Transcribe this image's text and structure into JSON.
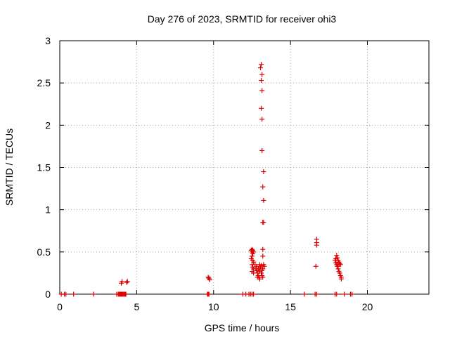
{
  "chart_data": {
    "type": "scatter",
    "title": "Day 276 of 2023, SRMTID for receiver ohi3",
    "xlabel": "GPS time / hours",
    "ylabel": "SRMTID / TECUs",
    "xlim": [
      0,
      24
    ],
    "ylim": [
      0,
      3
    ],
    "xticks": [
      0,
      5,
      10,
      15,
      20
    ],
    "yticks": [
      0,
      0.5,
      1,
      1.5,
      2,
      2.5,
      3
    ],
    "ytick_labels": [
      "0",
      "0.5",
      "1",
      "1.5",
      "2",
      "2.5",
      "3"
    ],
    "grid": true,
    "marker": "+",
    "marker_color": "#dd0000",
    "series": [
      {
        "name": "SRMTID",
        "points": [
          [
            0.1,
            0
          ],
          [
            0.3,
            0
          ],
          [
            0.4,
            0
          ],
          [
            0.9,
            0
          ],
          [
            2.2,
            0
          ],
          [
            3.7,
            0
          ],
          [
            3.8,
            0
          ],
          [
            3.85,
            0
          ],
          [
            3.9,
            0
          ],
          [
            3.95,
            0
          ],
          [
            4.0,
            0
          ],
          [
            4.05,
            0
          ],
          [
            4.1,
            0
          ],
          [
            4.15,
            0
          ],
          [
            4.2,
            0
          ],
          [
            4.25,
            0
          ],
          [
            4.3,
            0
          ],
          [
            4.0,
            0.13
          ],
          [
            4.05,
            0.15
          ],
          [
            4.35,
            0.14
          ],
          [
            4.4,
            0.15
          ],
          [
            9.6,
            0
          ],
          [
            9.65,
            0
          ],
          [
            9.7,
            0
          ],
          [
            9.65,
            0.2
          ],
          [
            9.7,
            0.19
          ],
          [
            9.75,
            0.17
          ],
          [
            11.9,
            0
          ],
          [
            12.1,
            0
          ],
          [
            12.3,
            0
          ],
          [
            12.4,
            0
          ],
          [
            12.5,
            0
          ],
          [
            12.6,
            0
          ],
          [
            12.45,
            0.52
          ],
          [
            12.5,
            0.5
          ],
          [
            12.55,
            0.48
          ],
          [
            12.5,
            0.45
          ],
          [
            12.45,
            0.42
          ],
          [
            12.55,
            0.4
          ],
          [
            12.6,
            0.38
          ],
          [
            12.5,
            0.35
          ],
          [
            12.55,
            0.32
          ],
          [
            12.6,
            0.3
          ],
          [
            12.5,
            0.27
          ],
          [
            12.6,
            0.25
          ],
          [
            12.55,
            0.52
          ],
          [
            12.6,
            0.5
          ],
          [
            12.5,
            0.53
          ],
          [
            12.7,
            0.35
          ],
          [
            12.75,
            0.3
          ],
          [
            12.8,
            0.28
          ],
          [
            12.85,
            0.25
          ],
          [
            12.9,
            0.22
          ],
          [
            12.95,
            0.2
          ],
          [
            13.0,
            0.18
          ],
          [
            12.8,
            0.33
          ],
          [
            12.9,
            0.3
          ],
          [
            13.0,
            0.27
          ],
          [
            13.1,
            0.25
          ],
          [
            13.15,
            0.22
          ],
          [
            13.2,
            0.2
          ],
          [
            12.85,
            0.2
          ],
          [
            13.05,
            0.32
          ],
          [
            13.1,
            0.34
          ],
          [
            13.2,
            0.3
          ],
          [
            13.25,
            0.35
          ],
          [
            13.3,
            0.33
          ],
          [
            13.0,
            0.35
          ],
          [
            12.95,
            0.3
          ],
          [
            13.15,
            0.28
          ],
          [
            13.1,
            2.72
          ],
          [
            13.05,
            2.68
          ],
          [
            13.15,
            2.6
          ],
          [
            13.1,
            2.53
          ],
          [
            13.15,
            2.41
          ],
          [
            13.1,
            2.2
          ],
          [
            13.15,
            2.07
          ],
          [
            13.15,
            1.7
          ],
          [
            13.25,
            1.45
          ],
          [
            13.2,
            1.27
          ],
          [
            13.25,
            1.11
          ],
          [
            13.2,
            0.85
          ],
          [
            13.25,
            0.85
          ],
          [
            13.2,
            0.53
          ],
          [
            13.2,
            0.45
          ],
          [
            15.9,
            0
          ],
          [
            16.6,
            0
          ],
          [
            16.7,
            0
          ],
          [
            16.7,
            0.65
          ],
          [
            16.7,
            0.61
          ],
          [
            16.7,
            0.58
          ],
          [
            16.65,
            0.33
          ],
          [
            17.9,
            0
          ],
          [
            18.0,
            0
          ],
          [
            18.5,
            0
          ],
          [
            18.9,
            0
          ],
          [
            19.0,
            0
          ],
          [
            17.9,
            0.4
          ],
          [
            17.95,
            0.37
          ],
          [
            18.0,
            0.35
          ],
          [
            18.05,
            0.33
          ],
          [
            18.1,
            0.3
          ],
          [
            18.15,
            0.27
          ],
          [
            18.2,
            0.25
          ],
          [
            18.25,
            0.22
          ],
          [
            18.3,
            0.2
          ],
          [
            18.0,
            0.46
          ],
          [
            18.05,
            0.43
          ],
          [
            18.1,
            0.4
          ],
          [
            18.15,
            0.38
          ],
          [
            18.2,
            0.36
          ],
          [
            18.25,
            0.35
          ],
          [
            18.3,
            0.18
          ],
          [
            18.1,
            0.33
          ],
          [
            17.95,
            0.42
          ]
        ]
      }
    ]
  }
}
